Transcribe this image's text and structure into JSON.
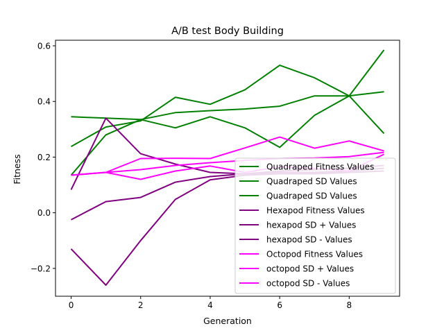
{
  "chart_data": {
    "type": "line",
    "title": "A/B test Body Building",
    "xlabel": "Generation",
    "ylabel": "Fitness",
    "xlim": [
      -0.45,
      9.45
    ],
    "ylim": [
      -0.3,
      0.62
    ],
    "x": [
      0,
      1,
      2,
      3,
      4,
      5,
      6,
      7,
      8,
      9
    ],
    "xticks": [
      0,
      2,
      4,
      6,
      8
    ],
    "yticks": [
      -0.2,
      0.0,
      0.2,
      0.4,
      0.6
    ],
    "ytick_labels": [
      "−0.2",
      "0.0",
      "0.2",
      "0.4",
      "0.6"
    ],
    "legend_position": "lower-right",
    "grid": false,
    "series": [
      {
        "name": "Quadraped Fitness Values",
        "color": "#008000",
        "values": [
          0.345,
          0.34,
          0.335,
          0.305,
          0.345,
          0.305,
          0.235,
          0.35,
          0.42,
          0.285
        ]
      },
      {
        "name": "Quadraped SD Values",
        "color": "#008000",
        "values": [
          0.238,
          0.308,
          0.33,
          0.415,
          0.39,
          0.442,
          0.53,
          0.485,
          0.42,
          0.585
        ]
      },
      {
        "name": "Quadraped SD Values",
        "color": "#008000",
        "values": [
          0.135,
          0.28,
          0.335,
          0.36,
          0.367,
          0.373,
          0.383,
          0.42,
          0.42,
          0.435
        ]
      },
      {
        "name": "Hexapod Fitness Values",
        "color": "#800080",
        "values": [
          0.083,
          0.34,
          0.212,
          0.175,
          0.145,
          0.14,
          0.145,
          0.145,
          0.15,
          0.16
        ]
      },
      {
        "name": "hexapod SD + Values",
        "color": "#800080",
        "values": [
          -0.025,
          0.04,
          0.055,
          0.11,
          0.13,
          0.14,
          0.15,
          0.155,
          0.16,
          0.17
        ]
      },
      {
        "name": "hexapod SD - Values",
        "color": "#800080",
        "values": [
          -0.13,
          -0.26,
          -0.1,
          0.048,
          0.118,
          0.135,
          0.14,
          0.14,
          0.145,
          0.15
        ]
      },
      {
        "name": "Octopod Fitness Values",
        "color": "#ff00ff",
        "values": [
          0.135,
          0.145,
          0.12,
          0.15,
          0.168,
          0.145,
          0.165,
          0.16,
          0.15,
          0.21
        ]
      },
      {
        "name": "octopod SD + Values",
        "color": "#ff00ff",
        "values": [
          0.135,
          0.145,
          0.195,
          0.196,
          0.195,
          0.233,
          0.272,
          0.232,
          0.258,
          0.222
        ]
      },
      {
        "name": "octopod SD - Values",
        "color": "#ff00ff",
        "values": [
          0.135,
          0.145,
          0.155,
          0.17,
          0.18,
          0.188,
          0.195,
          0.197,
          0.202,
          0.217
        ]
      }
    ]
  }
}
